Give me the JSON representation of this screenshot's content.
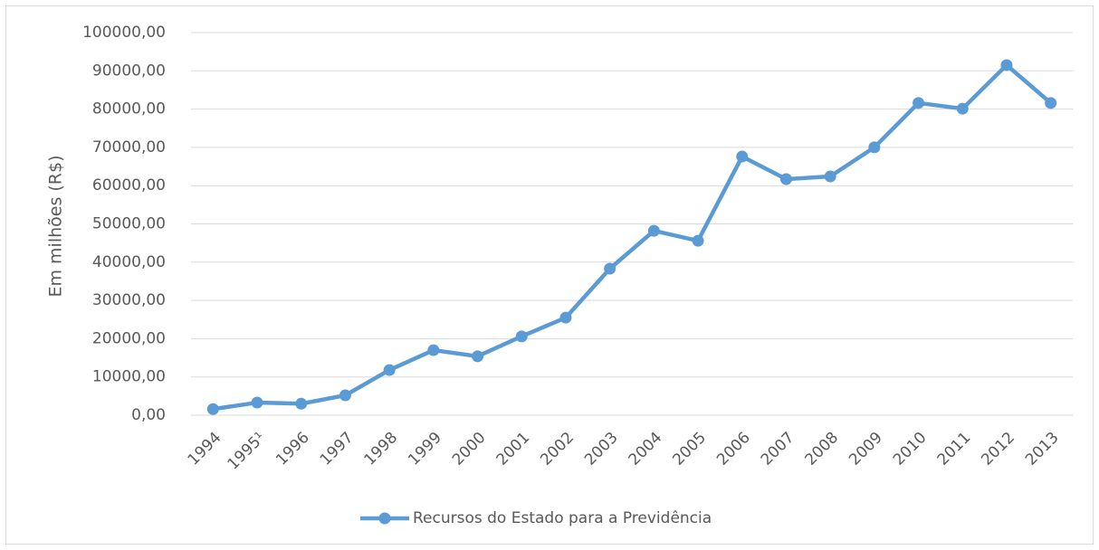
{
  "chart_data": {
    "type": "line",
    "y_axis_label": "Em milhões (R$)",
    "categories": [
      "1994",
      "1995¹",
      "1996",
      "1997",
      "1998",
      "1999",
      "2000",
      "2001",
      "2002",
      "2003",
      "2004",
      "2005",
      "2006",
      "2007",
      "2008",
      "2009",
      "2010",
      "2011",
      "2012",
      "2013"
    ],
    "series": [
      {
        "name": "Recursos do Estado para a Previdência",
        "color": "#5b9bd5",
        "values": [
          1600,
          3300,
          3000,
          5200,
          11800,
          17000,
          15400,
          20600,
          25500,
          38300,
          48200,
          45600,
          67600,
          61700,
          62400,
          70000,
          81600,
          80100,
          91500,
          81600
        ]
      }
    ],
    "ylim": [
      0,
      100000
    ],
    "yticks": [
      {
        "value": 0,
        "label": "0,00"
      },
      {
        "value": 10000,
        "label": "10000,00"
      },
      {
        "value": 20000,
        "label": "20000,00"
      },
      {
        "value": 30000,
        "label": "30000,00"
      },
      {
        "value": 40000,
        "label": "40000,00"
      },
      {
        "value": 50000,
        "label": "50000,00"
      },
      {
        "value": 60000,
        "label": "60000,00"
      },
      {
        "value": 70000,
        "label": "70000,00"
      },
      {
        "value": 80000,
        "label": "80000,00"
      },
      {
        "value": 90000,
        "label": "90000,00"
      },
      {
        "value": 100000,
        "label": "100000,00"
      }
    ],
    "grid": true,
    "legend": "bottom"
  }
}
